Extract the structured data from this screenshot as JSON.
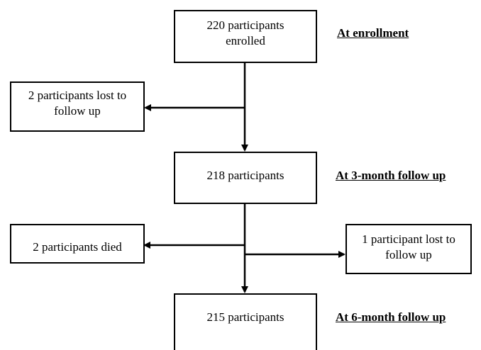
{
  "boxes": {
    "enrolled": "220 participants\nenrolled",
    "lost_first": "2 participants lost to\nfollow up",
    "three_month": "218 participants",
    "died": "2 participants died",
    "lost_second": "1 participant lost to\nfollow up",
    "six_month": "215 participants"
  },
  "stage_labels": {
    "enrollment": "At enrollment",
    "three_month": "At 3-month follow up",
    "six_month": "At 6-month follow up"
  }
}
